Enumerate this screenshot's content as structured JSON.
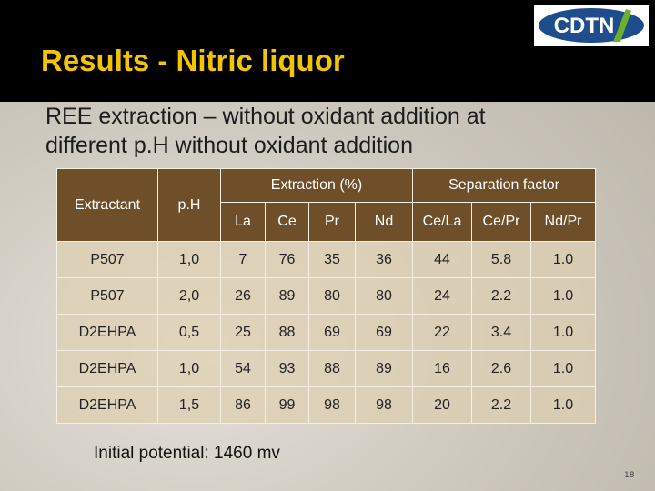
{
  "header": {
    "title": "Results - Nitric liquor",
    "logo": "CDTN"
  },
  "subtitle": [
    "REE extraction – without  oxidant addition at",
    "different p.H without  oxidant addition"
  ],
  "table": {
    "columns": [
      "Extractant",
      "p.H"
    ],
    "groups": [
      "Extraction (%)",
      "Separation factor"
    ],
    "subcolumns": [
      [
        "La",
        "Ce",
        "Pr",
        "Nd"
      ],
      [
        "Ce/La",
        "Ce/Pr",
        "Nd/Pr"
      ]
    ],
    "rows": [
      [
        "P507",
        "1,0",
        "7",
        "76",
        "35",
        "36",
        "44",
        "5.8",
        "1.0"
      ],
      [
        "P507",
        "2,0",
        "26",
        "89",
        "80",
        "80",
        "24",
        "2.2",
        "1.0"
      ],
      [
        "D2EHPA",
        "0,5",
        "25",
        "88",
        "69",
        "69",
        "22",
        "3.4",
        "1.0"
      ],
      [
        "D2EHPA",
        "1,0",
        "54",
        "93",
        "88",
        "89",
        "16",
        "2.6",
        "1.0"
      ],
      [
        "D2EHPA",
        "1,5",
        "86",
        "99",
        "98",
        "98",
        "20",
        "2.2",
        "1.0"
      ]
    ]
  },
  "note": "Initial potential: 1460 mv",
  "page_number": "18"
}
